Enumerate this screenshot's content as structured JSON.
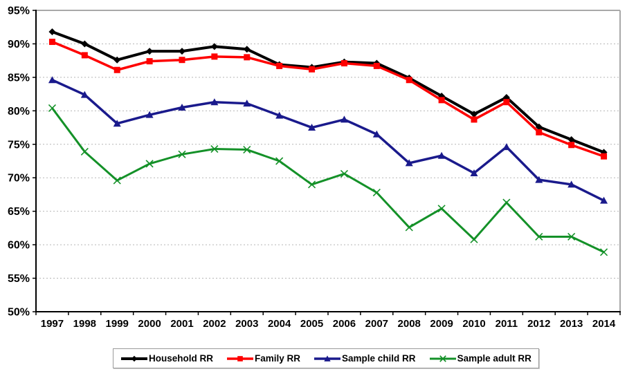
{
  "page": {
    "background": "#ffffff"
  },
  "chart_data": {
    "type": "line",
    "title": "",
    "xlabel": "",
    "ylabel": "",
    "categories": [
      "1997",
      "1998",
      "1999",
      "2000",
      "2001",
      "2002",
      "2003",
      "2004",
      "2005",
      "2006",
      "2007",
      "2008",
      "2009",
      "2010",
      "2011",
      "2012",
      "2013",
      "2014"
    ],
    "series": [
      {
        "name": "Household RR",
        "color": "#000000",
        "marker": "diamond",
        "line_width": 4,
        "values": [
          91.8,
          90.0,
          87.6,
          88.9,
          88.9,
          89.6,
          89.2,
          86.9,
          86.5,
          87.3,
          87.1,
          84.9,
          82.2,
          79.5,
          82.0,
          77.6,
          75.7,
          73.8
        ]
      },
      {
        "name": "Family RR",
        "color": "#fe0000",
        "marker": "square",
        "line_width": 3.5,
        "values": [
          90.3,
          88.3,
          86.1,
          87.4,
          87.6,
          88.1,
          88.0,
          86.7,
          86.2,
          87.1,
          86.7,
          84.6,
          81.6,
          78.7,
          81.3,
          76.8,
          74.9,
          73.2
        ]
      },
      {
        "name": "Sample child RR",
        "color": "#1a1a8c",
        "marker": "triangle",
        "line_width": 3.5,
        "values": [
          84.6,
          82.4,
          78.1,
          79.4,
          80.5,
          81.3,
          81.1,
          79.3,
          77.5,
          78.7,
          76.5,
          72.2,
          73.3,
          70.7,
          74.6,
          69.7,
          69.0,
          66.6
        ]
      },
      {
        "name": "Sample adult RR",
        "color": "#149128",
        "marker": "x",
        "line_width": 3,
        "values": [
          80.4,
          73.9,
          69.6,
          72.1,
          73.5,
          74.3,
          74.2,
          72.5,
          69.0,
          70.6,
          67.8,
          62.6,
          65.4,
          60.8,
          66.3,
          61.2,
          61.2,
          58.9
        ]
      }
    ],
    "ylim": [
      50,
      95
    ],
    "ytick_step": 5,
    "ytick_labels": [
      "50%",
      "55%",
      "60%",
      "65%",
      "70%",
      "75%",
      "80%",
      "85%",
      "90%",
      "95%"
    ],
    "grid": "horizontal dotted",
    "legend_position": "bottom",
    "colors": {
      "axis": "#000000",
      "gridline": "#b5b5b5",
      "plot_border_top_right": "#a8a8a8",
      "tick": "#000000",
      "label_text": "#000000",
      "legend_border": "#9a9a9a"
    }
  }
}
